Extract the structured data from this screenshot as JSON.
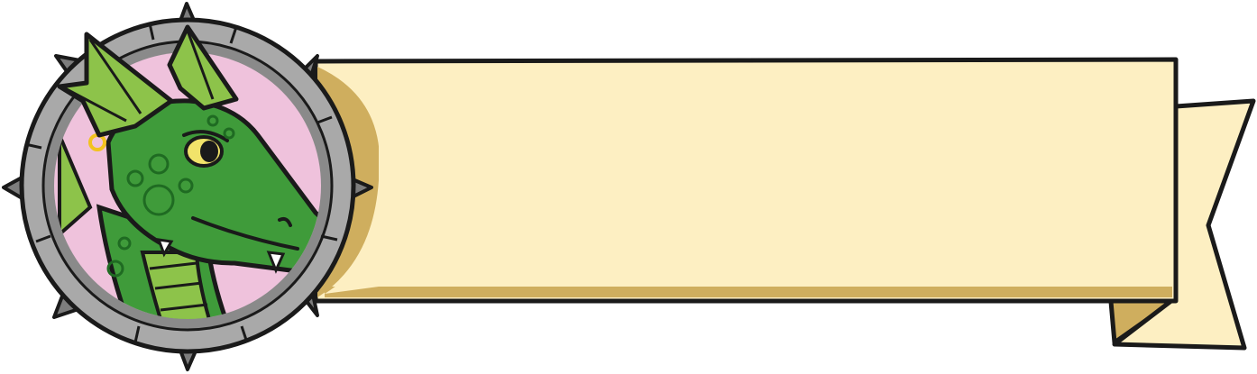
{
  "banner": {
    "text": ""
  },
  "colors": {
    "banner_fill": "#fdefc2",
    "banner_shadow": "#cfae5e",
    "outline": "#1a1a1a",
    "frame_gray": "#a9a9a9",
    "frame_inner": "#8a8a8a",
    "portrait_bg": "#efc2dc",
    "dragon_green": "#3f9b3a",
    "dragon_light": "#8dc34a",
    "eye_yellow": "#f1e36a",
    "earring_gold": "#f2c21e",
    "spike": "#7d7d7d"
  },
  "icons": {
    "portrait": "dragon-portrait-icon",
    "frame": "spiked-frame-icon"
  }
}
